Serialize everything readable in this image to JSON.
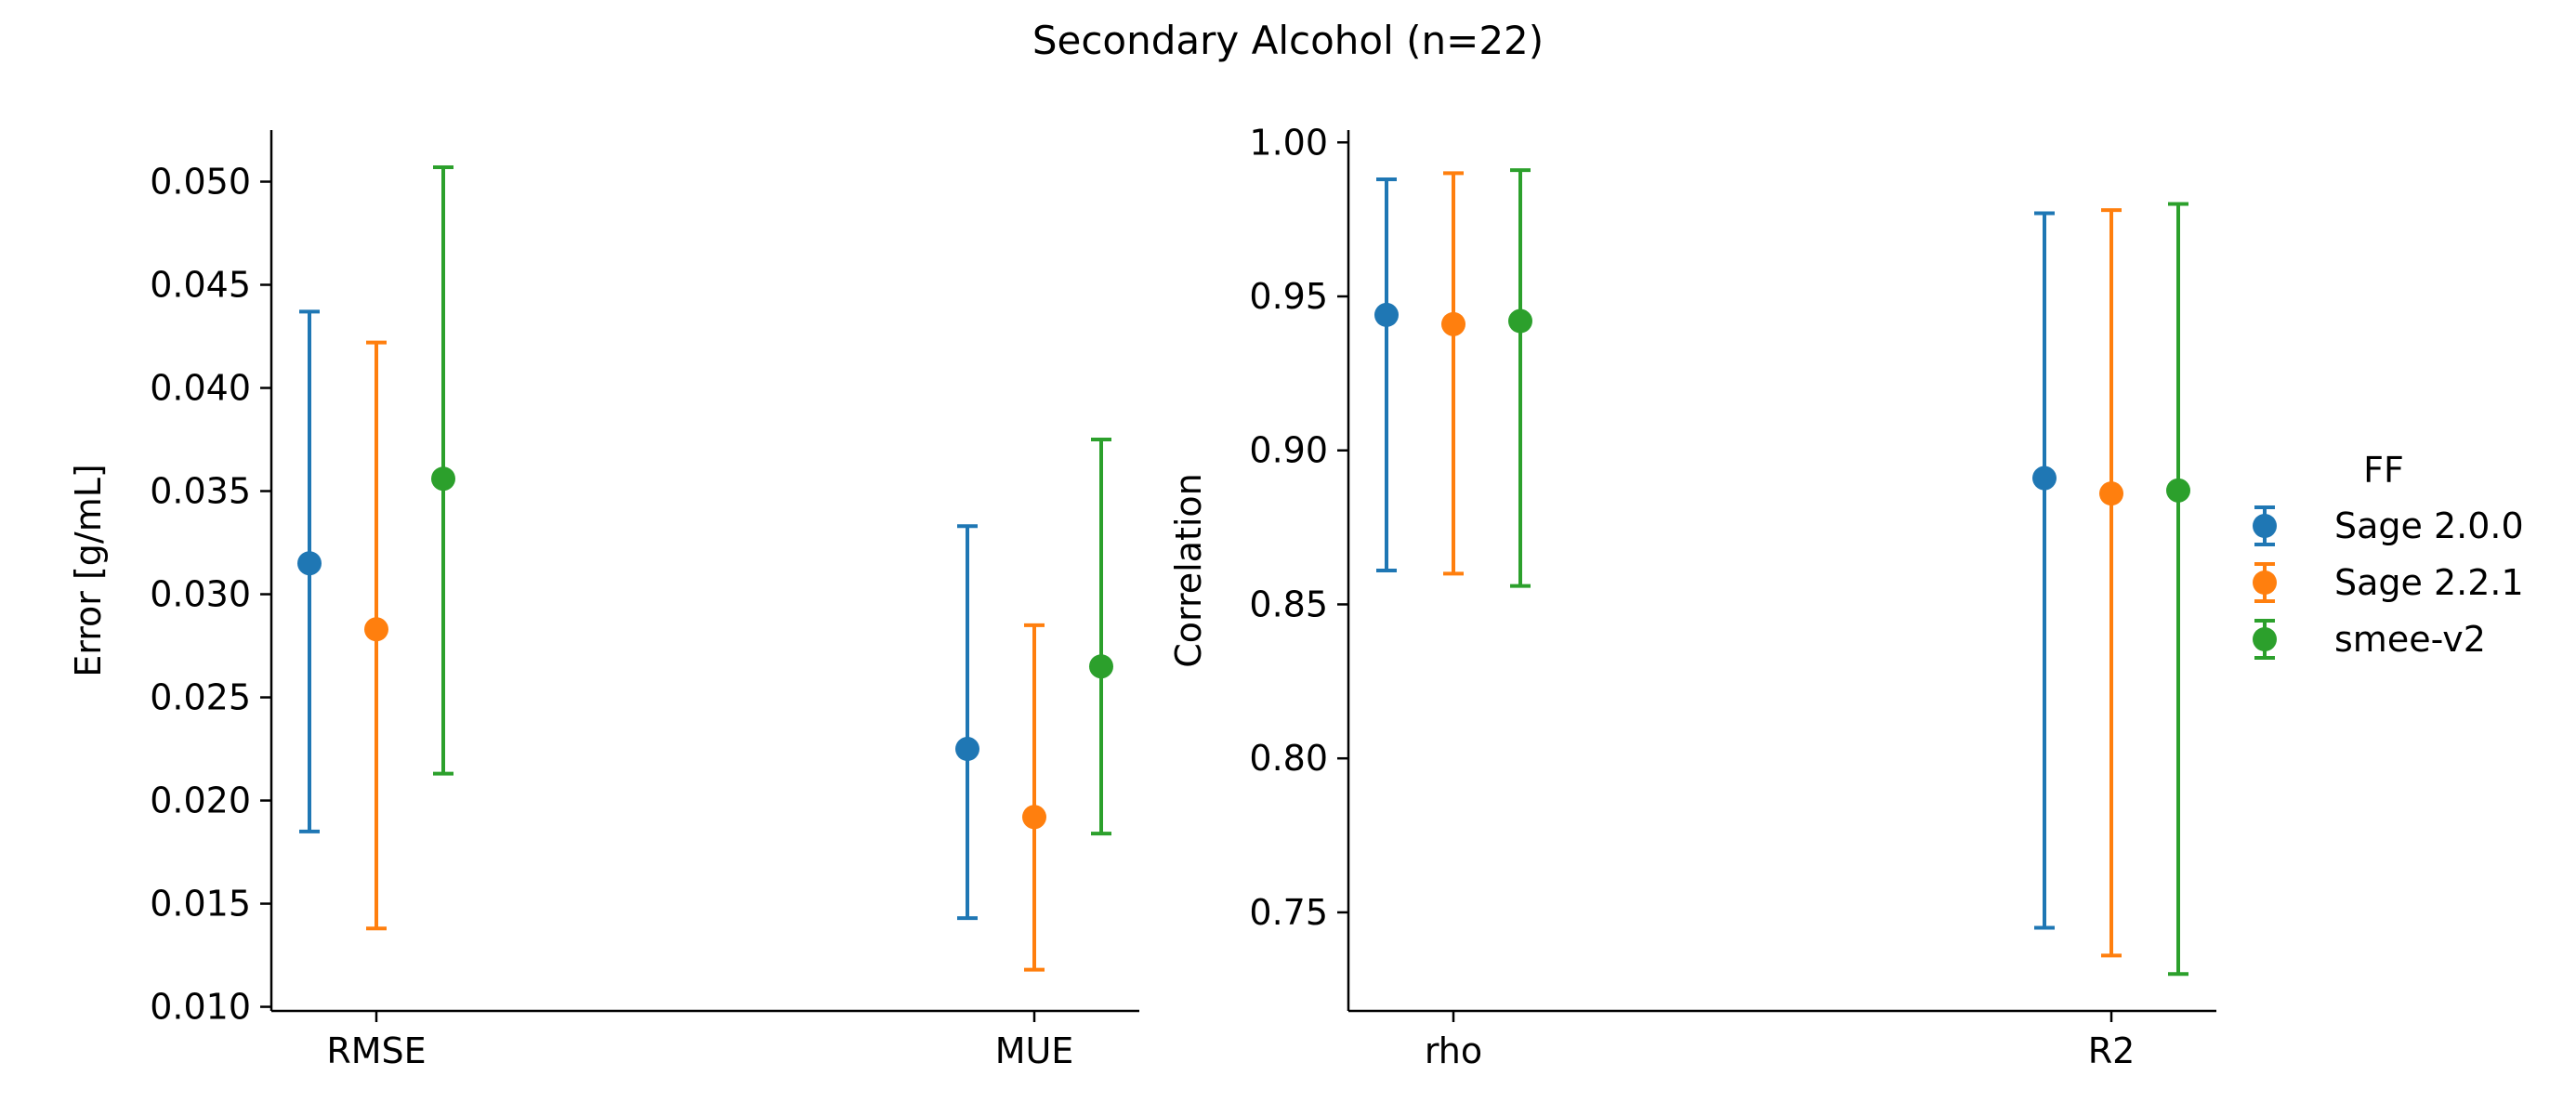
{
  "figure": {
    "title": "Secondary Alcohol (n=22)",
    "legend": {
      "title": "FF",
      "placement": "right"
    }
  },
  "colors": {
    "Sage 2.0.0": "#1f77b4",
    "Sage 2.2.1": "#ff7f0e",
    "smee-v2": "#2ca02c"
  },
  "chart_data": [
    {
      "type": "scatter",
      "subtype": "pointplot-with-errorbars",
      "categories": [
        "RMSE",
        "MUE"
      ],
      "ylabel": "Error [g/mL]",
      "ylim": [
        0.0098,
        0.0525
      ],
      "yticks": [
        0.01,
        0.015,
        0.02,
        0.025,
        0.03,
        0.035,
        0.04,
        0.045,
        0.05
      ],
      "ytick_labels": [
        "0.010",
        "0.015",
        "0.020",
        "0.025",
        "0.030",
        "0.035",
        "0.040",
        "0.045",
        "0.050"
      ],
      "series": [
        {
          "name": "Sage 2.0.0",
          "values": [
            0.0315,
            0.0225
          ],
          "lower": [
            0.0185,
            0.0143
          ],
          "upper": [
            0.0437,
            0.0333
          ]
        },
        {
          "name": "Sage 2.2.1",
          "values": [
            0.0283,
            0.0192
          ],
          "lower": [
            0.0138,
            0.0118
          ],
          "upper": [
            0.0422,
            0.0285
          ]
        },
        {
          "name": "smee-v2",
          "values": [
            0.0356,
            0.0265
          ],
          "lower": [
            0.0213,
            0.0184
          ],
          "upper": [
            0.0507,
            0.0375
          ]
        }
      ]
    },
    {
      "type": "scatter",
      "subtype": "pointplot-with-errorbars",
      "categories": [
        "rho",
        "R2"
      ],
      "ylabel": "Correlation",
      "ylim": [
        0.718,
        1.004
      ],
      "yticks": [
        0.75,
        0.8,
        0.85,
        0.9,
        0.95,
        1.0
      ],
      "ytick_labels": [
        "0.75",
        "0.80",
        "0.85",
        "0.90",
        "0.95",
        "1.00"
      ],
      "series": [
        {
          "name": "Sage 2.0.0",
          "values": [
            0.944,
            0.891
          ],
          "lower": [
            0.861,
            0.745
          ],
          "upper": [
            0.988,
            0.977
          ]
        },
        {
          "name": "Sage 2.2.1",
          "values": [
            0.941,
            0.886
          ],
          "lower": [
            0.86,
            0.736
          ],
          "upper": [
            0.99,
            0.978
          ]
        },
        {
          "name": "smee-v2",
          "values": [
            0.942,
            0.887
          ],
          "lower": [
            0.856,
            0.73
          ],
          "upper": [
            0.991,
            0.98
          ]
        }
      ]
    }
  ]
}
